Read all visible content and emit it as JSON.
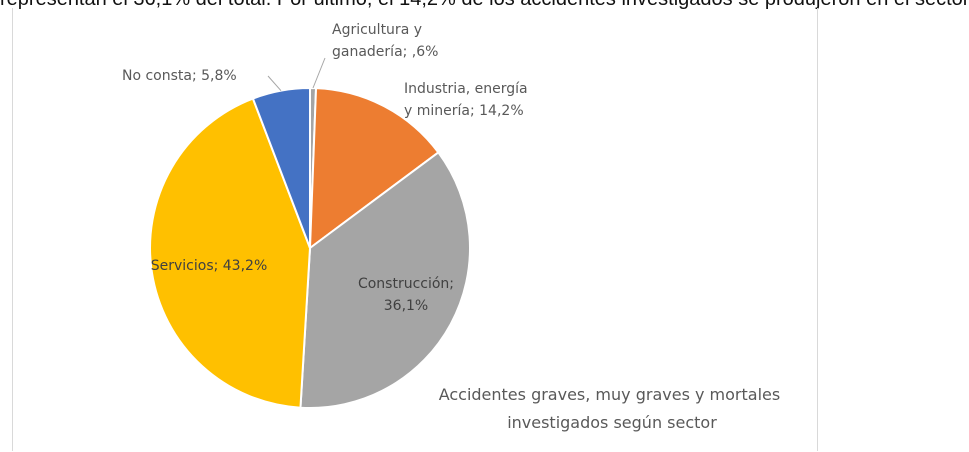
{
  "page": {
    "top_text": "representan el 36,1% del total. Por último, el 14,2% de los accidentes investigados se produjeron en el sector"
  },
  "chart_data": {
    "type": "pie",
    "title_lines": [
      "Accidentes graves, muy graves y mortales",
      "investigados según sector"
    ],
    "slices": [
      {
        "name": "Agricultura y ganadería",
        "value": 0.6,
        "label_lines": [
          "Agricultura y",
          "ganadería; ,6%"
        ],
        "color": "#a5a5a5"
      },
      {
        "name": "Industria, energía y minería",
        "value": 14.2,
        "label_lines": [
          "Industria, energía",
          "y minería; 14,2%"
        ],
        "color": "#ed7d31"
      },
      {
        "name": "Construcción",
        "value": 36.1,
        "label_lines": [
          "Construcción;",
          "36,1%"
        ],
        "color": "#a5a5a5"
      },
      {
        "name": "Servicios",
        "value": 43.2,
        "label_lines": [
          "Servicios; 43,2%"
        ],
        "color": "#ffc000"
      },
      {
        "name": "No consta",
        "value": 5.8,
        "label_lines": [
          "No consta; 5,8%"
        ],
        "color": "#4472c4"
      }
    ]
  }
}
